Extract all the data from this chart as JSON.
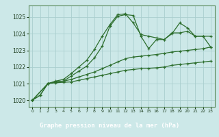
{
  "background_color": "#cce8e8",
  "grid_color": "#aacece",
  "line_color": "#2d6e2d",
  "title": "Graphe pression niveau de la mer (hPa)",
  "title_bg": "#4a7a4a",
  "title_fg": "#ffffff",
  "xlim": [
    -0.5,
    23.5
  ],
  "ylim": [
    1019.6,
    1025.7
  ],
  "yticks": [
    1020,
    1021,
    1022,
    1023,
    1024,
    1025
  ],
  "xticks": [
    0,
    1,
    2,
    3,
    4,
    5,
    6,
    7,
    8,
    9,
    10,
    11,
    12,
    13,
    14,
    15,
    16,
    17,
    18,
    19,
    20,
    21,
    22,
    23
  ],
  "series": [
    {
      "x": [
        0,
        1,
        2,
        3,
        4,
        5,
        6,
        7,
        8,
        9,
        10,
        11,
        12,
        13,
        14,
        15,
        16,
        17,
        18,
        19,
        20,
        21,
        22,
        23
      ],
      "y": [
        1020.0,
        1020.3,
        1021.0,
        1021.15,
        1021.25,
        1021.6,
        1022.0,
        1022.4,
        1023.05,
        1023.85,
        1024.55,
        1025.15,
        1025.2,
        1024.65,
        1023.95,
        1023.85,
        1023.75,
        1023.65,
        1024.0,
        1024.65,
        1024.35,
        1023.85,
        1023.85,
        1023.85
      ],
      "style": "-",
      "marker": "+"
    },
    {
      "x": [
        0,
        1,
        2,
        3,
        4,
        5,
        6,
        7,
        8,
        9,
        10,
        11,
        12,
        13,
        14,
        15,
        16,
        17,
        18,
        19,
        20,
        21,
        22,
        23
      ],
      "y": [
        1020.0,
        1020.3,
        1021.0,
        1021.1,
        1021.15,
        1021.45,
        1021.75,
        1022.05,
        1022.55,
        1023.25,
        1024.45,
        1025.05,
        1025.15,
        1025.1,
        1023.85,
        1023.1,
        1023.65,
        1023.65,
        1024.05,
        1024.05,
        1024.15,
        1023.85,
        1023.85,
        1023.2
      ],
      "style": "-",
      "marker": "+"
    },
    {
      "x": [
        0,
        2,
        3,
        4,
        5,
        6,
        7,
        8,
        9,
        10,
        11,
        12,
        13,
        14,
        15,
        16,
        17,
        18,
        19,
        20,
        21,
        22,
        23
      ],
      "y": [
        1020.0,
        1021.0,
        1021.1,
        1021.15,
        1021.25,
        1021.4,
        1021.55,
        1021.7,
        1021.9,
        1022.1,
        1022.3,
        1022.5,
        1022.6,
        1022.65,
        1022.7,
        1022.75,
        1022.82,
        1022.9,
        1022.95,
        1023.0,
        1023.05,
        1023.1,
        1023.2
      ],
      "style": "-",
      "marker": "+"
    },
    {
      "x": [
        0,
        2,
        3,
        4,
        5,
        6,
        7,
        8,
        9,
        10,
        11,
        12,
        13,
        14,
        15,
        16,
        17,
        18,
        19,
        20,
        21,
        22,
        23
      ],
      "y": [
        1020.0,
        1021.0,
        1021.05,
        1021.08,
        1021.1,
        1021.2,
        1021.3,
        1021.4,
        1021.5,
        1021.6,
        1021.7,
        1021.8,
        1021.85,
        1021.9,
        1021.92,
        1021.95,
        1022.0,
        1022.1,
        1022.15,
        1022.2,
        1022.25,
        1022.3,
        1022.35
      ],
      "style": "-",
      "marker": "+"
    }
  ]
}
